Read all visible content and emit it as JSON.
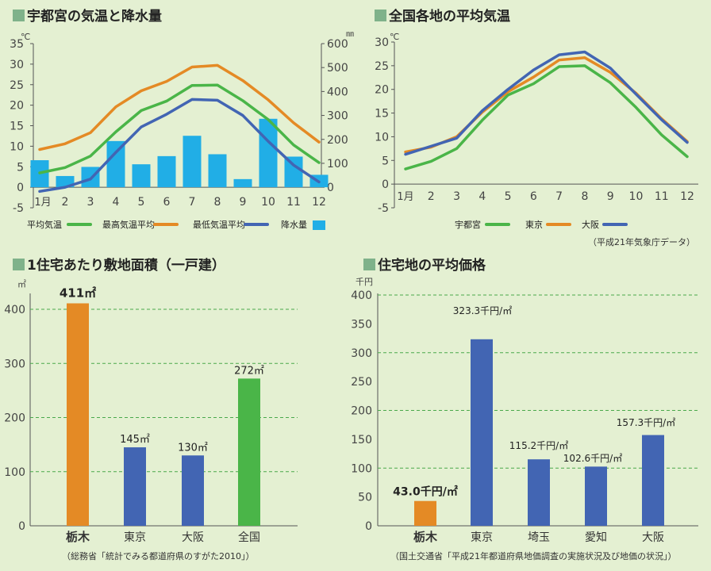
{
  "colors": {
    "background": "#e4f0d2",
    "square": "#7fb28a",
    "green": "#4ab548",
    "orange": "#e48a25",
    "blue": "#4265b3",
    "cyan": "#21aee6",
    "grid_dashed": "#4aa84b"
  },
  "chart_data": [
    {
      "type": "line+bar",
      "title": "宇都宮の気温と降水量",
      "y_left_unit": "℃",
      "y_right_unit": "㎜",
      "ylim_left": [
        -5,
        35
      ],
      "ylim_right": [
        0,
        600
      ],
      "left_ticks": [
        "35",
        "30",
        "25",
        "20",
        "15",
        "10",
        "5",
        "0",
        "-5"
      ],
      "right_ticks": [
        "600",
        "500",
        "400",
        "300",
        "200",
        "100",
        "0"
      ],
      "categories": [
        "1月",
        "2",
        "3",
        "4",
        "5",
        "6",
        "7",
        "8",
        "9",
        "10",
        "11",
        "12"
      ],
      "series": [
        {
          "name": "平均気温",
          "type": "line",
          "axis": "left",
          "color": "#4ab548",
          "values": [
            3.5,
            4.8,
            7.6,
            13.5,
            18.7,
            21.0,
            24.8,
            24.9,
            21.1,
            16.5,
            10.3,
            6.0
          ]
        },
        {
          "name": "最高気温平均",
          "type": "line",
          "axis": "left",
          "color": "#e48a25",
          "values": [
            9.2,
            10.6,
            13.3,
            19.6,
            23.5,
            25.8,
            29.3,
            29.7,
            26.0,
            21.3,
            15.7,
            11.0
          ]
        },
        {
          "name": "最低気温平均",
          "type": "line",
          "axis": "left",
          "color": "#4265b3",
          "values": [
            -1.0,
            0.0,
            2.0,
            8.5,
            14.7,
            17.8,
            21.4,
            21.2,
            17.5,
            11.2,
            5.4,
            1.3
          ]
        },
        {
          "name": "降水量",
          "type": "bar",
          "axis": "right",
          "color": "#21aee6",
          "values": [
            113,
            47,
            85,
            193,
            96,
            130,
            215,
            138,
            34,
            286,
            128,
            52
          ]
        }
      ],
      "legend": [
        "平均気温",
        "最高気温平均",
        "最低気温平均",
        "降水量"
      ]
    },
    {
      "type": "line",
      "title": "全国各地の平均気温",
      "y_unit": "℃",
      "ylim": [
        -5,
        30
      ],
      "ticks": [
        "30",
        "25",
        "20",
        "15",
        "10",
        "5",
        "0",
        "-5"
      ],
      "categories": [
        "1月",
        "2",
        "3",
        "4",
        "5",
        "6",
        "7",
        "8",
        "9",
        "10",
        "11",
        "12"
      ],
      "series": [
        {
          "name": "宇都宮",
          "color": "#4ab548",
          "values": [
            3.2,
            4.8,
            7.5,
            13.5,
            18.8,
            21.2,
            24.8,
            25.0,
            21.4,
            16.2,
            10.4,
            5.8
          ]
        },
        {
          "name": "東京",
          "color": "#e48a25",
          "values": [
            6.8,
            7.8,
            10.0,
            15.2,
            19.5,
            22.6,
            26.2,
            26.7,
            23.6,
            19.2,
            13.8,
            9.0
          ]
        },
        {
          "name": "大阪",
          "color": "#4265b3",
          "values": [
            6.3,
            8.0,
            9.7,
            15.5,
            20.0,
            24.1,
            27.3,
            27.9,
            24.5,
            19.0,
            13.6,
            8.8
          ]
        }
      ],
      "note": "（平成21年気象庁データ）"
    },
    {
      "type": "bar",
      "title": "1住宅あたり敷地面積（一戸建）",
      "y_unit": "㎡",
      "ylim": [
        0,
        400
      ],
      "ticks": [
        "400",
        "300",
        "200",
        "100",
        "0"
      ],
      "categories": [
        "栃木",
        "東京",
        "大阪",
        "全国"
      ],
      "values": [
        411,
        145,
        130,
        272
      ],
      "value_labels": [
        "411㎡",
        "145㎡",
        "130㎡",
        "272㎡"
      ],
      "bar_colors": [
        "#e48a25",
        "#4265b3",
        "#4265b3",
        "#4ab548"
      ],
      "source": "（総務省「統計でみる都道府県のすがた2010」）"
    },
    {
      "type": "bar",
      "title": "住宅地の平均価格",
      "y_unit": "千円",
      "ylim": [
        0,
        400
      ],
      "ticks": [
        "400",
        "350",
        "300",
        "250",
        "200",
        "150",
        "100",
        "50",
        "0"
      ],
      "categories": [
        "栃木",
        "東京",
        "埼玉",
        "愛知",
        "大阪"
      ],
      "values": [
        43.0,
        323.3,
        115.2,
        102.6,
        157.3
      ],
      "value_labels": [
        "43.0千円/㎡",
        "323.3千円/㎡",
        "115.2千円/㎡",
        "102.6千円/㎡",
        "157.3千円/㎡"
      ],
      "bar_colors": [
        "#e48a25",
        "#4265b3",
        "#4265b3",
        "#4265b3",
        "#4265b3"
      ],
      "source": "（国土交通省「平成21年都道府県地価調査の実施状況及び地価の状況」）"
    }
  ]
}
